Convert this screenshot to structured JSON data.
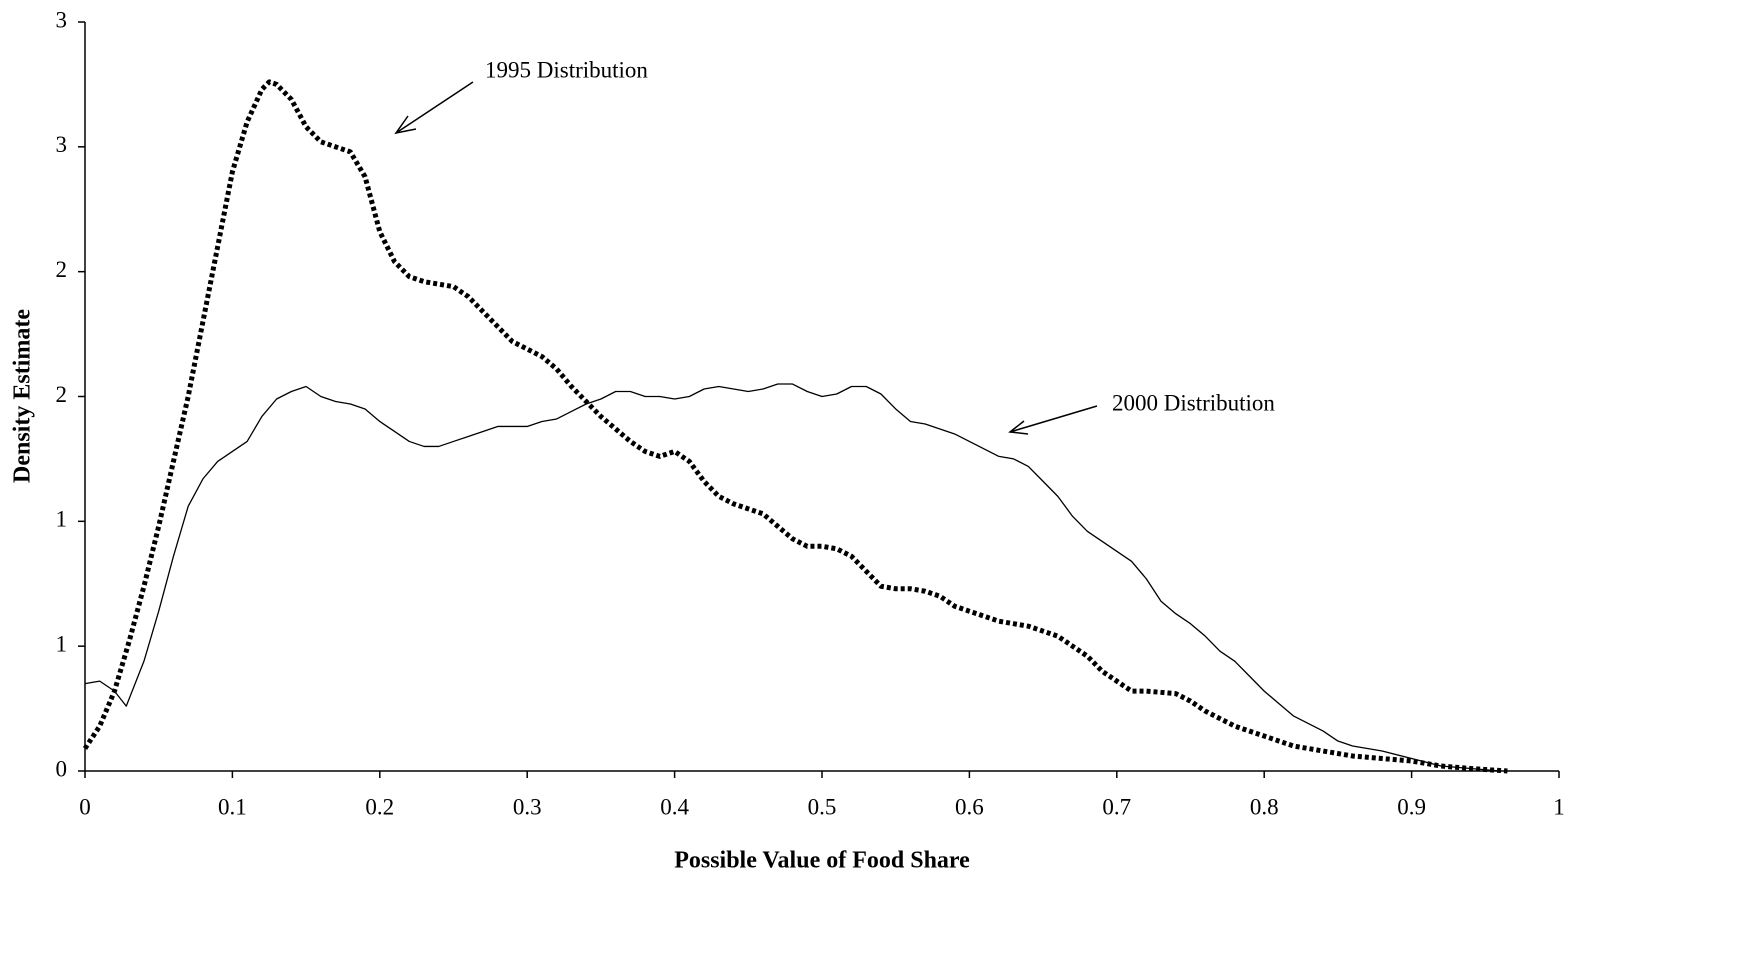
{
  "chart_data": {
    "type": "line",
    "xlabel": "Possible Value of Food Share",
    "ylabel": "Density Estimate",
    "xlim": [
      0,
      1
    ],
    "xticks": [
      0,
      0.1,
      0.2,
      0.3,
      0.4,
      0.5,
      0.6,
      0.7,
      0.8,
      0.9,
      1
    ],
    "ylim": [
      0,
      3
    ],
    "yticks": [
      0,
      {
        "value": 0.5,
        "label": "1"
      },
      1,
      {
        "value": 1.5,
        "label": "2"
      },
      2,
      {
        "value": 2.5,
        "label": "3"
      },
      3
    ],
    "grid": false,
    "series": [
      {
        "name": "1995 Distribution",
        "color": "#000000",
        "style": "dotted",
        "x": [
          0,
          0.01,
          0.02,
          0.03,
          0.04,
          0.05,
          0.06,
          0.07,
          0.08,
          0.09,
          0.1,
          0.11,
          0.12,
          0.125,
          0.13,
          0.14,
          0.15,
          0.16,
          0.17,
          0.18,
          0.19,
          0.2,
          0.21,
          0.22,
          0.23,
          0.25,
          0.26,
          0.27,
          0.28,
          0.29,
          0.3,
          0.31,
          0.32,
          0.33,
          0.34,
          0.35,
          0.36,
          0.37,
          0.38,
          0.39,
          0.4,
          0.41,
          0.42,
          0.43,
          0.44,
          0.45,
          0.46,
          0.47,
          0.48,
          0.49,
          0.5,
          0.51,
          0.52,
          0.53,
          0.54,
          0.55,
          0.56,
          0.57,
          0.58,
          0.59,
          0.6,
          0.62,
          0.64,
          0.66,
          0.68,
          0.69,
          0.7,
          0.71,
          0.72,
          0.74,
          0.75,
          0.76,
          0.78,
          0.8,
          0.82,
          0.84,
          0.86,
          0.88,
          0.9,
          0.92,
          0.94,
          0.965
        ],
        "values": [
          0.09,
          0.18,
          0.32,
          0.52,
          0.74,
          0.98,
          1.24,
          1.5,
          1.8,
          2.1,
          2.4,
          2.6,
          2.73,
          2.76,
          2.75,
          2.69,
          2.58,
          2.52,
          2.5,
          2.48,
          2.38,
          2.16,
          2.04,
          1.98,
          1.96,
          1.94,
          1.9,
          1.84,
          1.78,
          1.72,
          1.69,
          1.66,
          1.61,
          1.54,
          1.48,
          1.42,
          1.37,
          1.32,
          1.28,
          1.26,
          1.28,
          1.24,
          1.16,
          1.1,
          1.07,
          1.05,
          1.03,
          0.98,
          0.93,
          0.9,
          0.9,
          0.89,
          0.86,
          0.8,
          0.74,
          0.73,
          0.73,
          0.72,
          0.7,
          0.66,
          0.64,
          0.6,
          0.58,
          0.54,
          0.46,
          0.4,
          0.36,
          0.32,
          0.32,
          0.31,
          0.28,
          0.24,
          0.18,
          0.14,
          0.1,
          0.08,
          0.06,
          0.05,
          0.04,
          0.02,
          0.01,
          0
        ]
      },
      {
        "name": "2000 Distribution",
        "color": "#000000",
        "style": "solid",
        "x": [
          0,
          0.01,
          0.02,
          0.028,
          0.04,
          0.05,
          0.06,
          0.07,
          0.08,
          0.09,
          0.1,
          0.11,
          0.12,
          0.13,
          0.14,
          0.15,
          0.16,
          0.17,
          0.18,
          0.19,
          0.2,
          0.21,
          0.22,
          0.23,
          0.24,
          0.25,
          0.26,
          0.27,
          0.28,
          0.29,
          0.3,
          0.31,
          0.32,
          0.33,
          0.34,
          0.35,
          0.36,
          0.37,
          0.38,
          0.39,
          0.4,
          0.41,
          0.42,
          0.43,
          0.44,
          0.45,
          0.46,
          0.47,
          0.48,
          0.49,
          0.5,
          0.51,
          0.52,
          0.53,
          0.54,
          0.55,
          0.56,
          0.57,
          0.58,
          0.59,
          0.6,
          0.61,
          0.62,
          0.63,
          0.64,
          0.65,
          0.66,
          0.67,
          0.68,
          0.69,
          0.7,
          0.71,
          0.72,
          0.73,
          0.74,
          0.75,
          0.76,
          0.77,
          0.78,
          0.79,
          0.8,
          0.81,
          0.82,
          0.83,
          0.84,
          0.85,
          0.86,
          0.88,
          0.9,
          0.92,
          0.94,
          0.96
        ],
        "values": [
          0.35,
          0.36,
          0.32,
          0.26,
          0.44,
          0.64,
          0.86,
          1.06,
          1.17,
          1.24,
          1.28,
          1.32,
          1.42,
          1.49,
          1.52,
          1.54,
          1.5,
          1.48,
          1.47,
          1.45,
          1.4,
          1.36,
          1.32,
          1.3,
          1.3,
          1.32,
          1.34,
          1.36,
          1.38,
          1.38,
          1.38,
          1.4,
          1.41,
          1.44,
          1.47,
          1.49,
          1.52,
          1.52,
          1.5,
          1.5,
          1.49,
          1.5,
          1.53,
          1.54,
          1.53,
          1.52,
          1.53,
          1.55,
          1.55,
          1.52,
          1.5,
          1.51,
          1.54,
          1.54,
          1.51,
          1.45,
          1.4,
          1.39,
          1.37,
          1.35,
          1.32,
          1.29,
          1.26,
          1.25,
          1.22,
          1.16,
          1.1,
          1.02,
          0.96,
          0.92,
          0.88,
          0.84,
          0.77,
          0.68,
          0.63,
          0.59,
          0.54,
          0.48,
          0.44,
          0.38,
          0.32,
          0.27,
          0.22,
          0.19,
          0.16,
          0.12,
          0.1,
          0.08,
          0.05,
          0.02,
          0.01,
          0
        ]
      }
    ]
  }
}
